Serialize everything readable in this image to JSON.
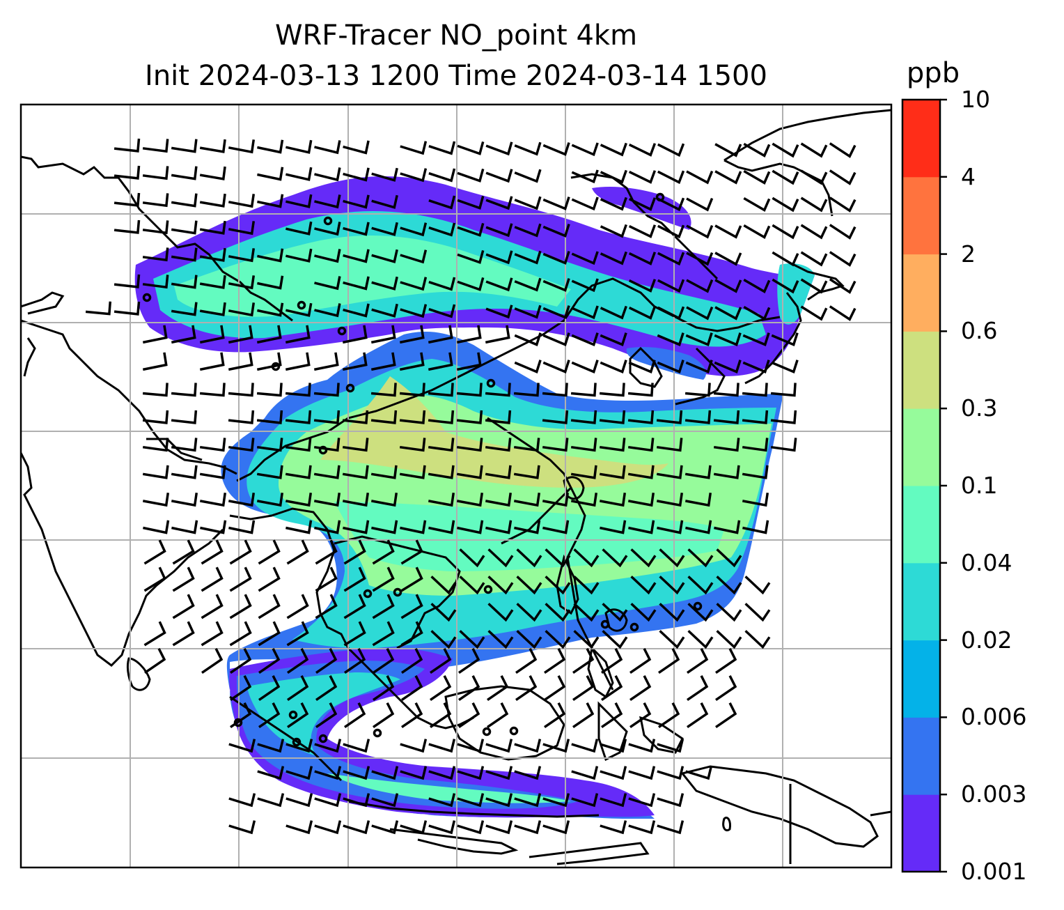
{
  "title_line1": "WRF-Tracer NO_point 4km",
  "title_line2": "Init 2024-03-13 1200 Time 2024-03-14 1500",
  "colorbar": {
    "unit": "ppb",
    "levels": [
      "0.001",
      "0.003",
      "0.006",
      "0.02",
      "0.04",
      "0.1",
      "0.3",
      "0.6",
      "2",
      "4",
      "10"
    ],
    "colors": [
      "#652bf8",
      "#3474f1",
      "#04b2e8",
      "#2ddad6",
      "#63fbc0",
      "#96fb9b",
      "#cde07f",
      "#ffae5f",
      "#ff733e",
      "#ff2d18"
    ]
  },
  "map": {
    "gridline_color": "#b0b0b0",
    "coastline_color": "#000000",
    "marker": "open-circle-point-sources",
    "wind_vectors": "barbs"
  }
}
